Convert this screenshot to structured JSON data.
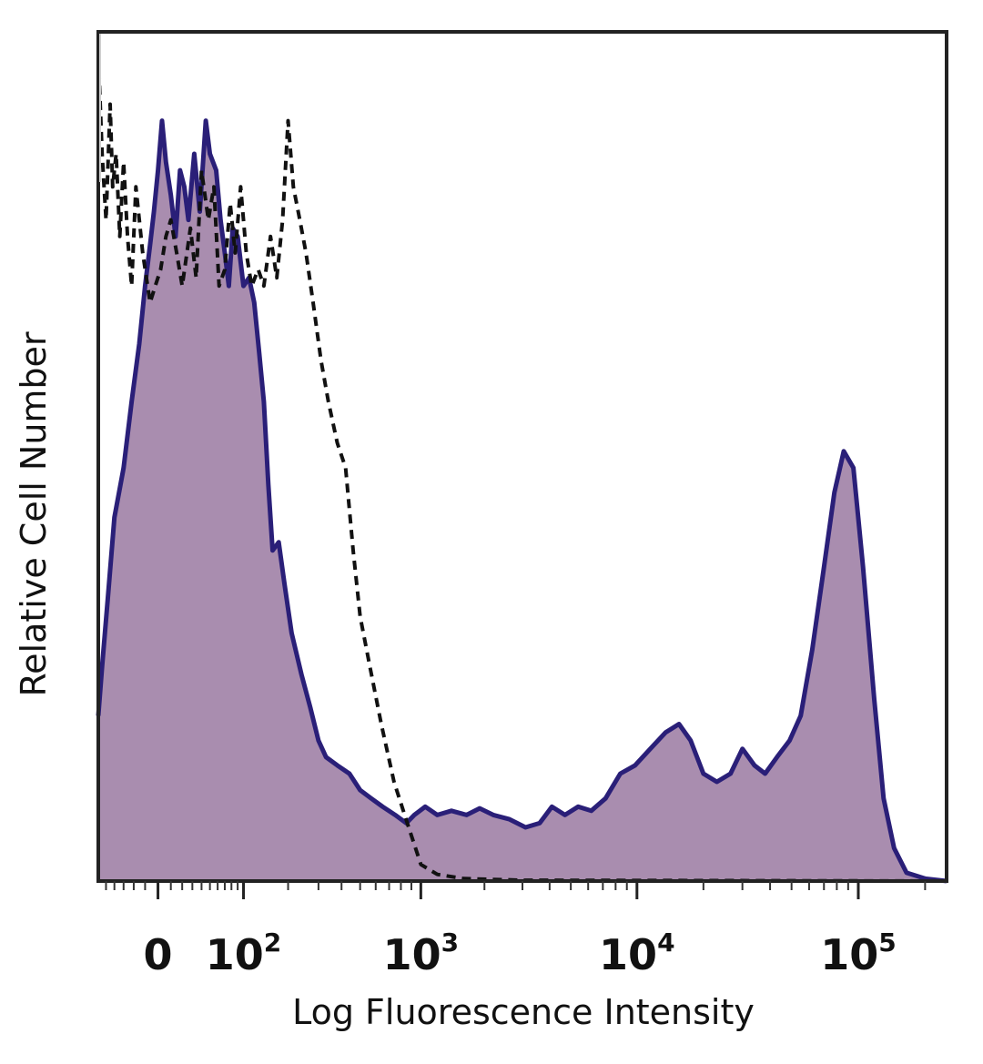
{
  "chart_data": {
    "type": "area",
    "title": "",
    "xlabel": "Log Fluorescence Intensity",
    "ylabel": "Relative Cell Number",
    "x_scale": "biexponential",
    "xlim": [
      -60,
      250000
    ],
    "ylim": [
      0,
      100
    ],
    "x_ticks": [
      {
        "value": 0,
        "base": "0",
        "exp": ""
      },
      {
        "value": 100,
        "base": "10",
        "exp": "2"
      },
      {
        "value": 1000,
        "base": "10",
        "exp": "3"
      },
      {
        "value": 10000,
        "base": "10",
        "exp": "4"
      },
      {
        "value": 100000,
        "base": "10",
        "exp": "5"
      }
    ],
    "grid": false,
    "legend": "none",
    "series": [
      {
        "style": "filled-solid",
        "fill_color": "#a98daf",
        "line_color": "#2a1f78",
        "points": [
          [
            -60,
            20
          ],
          [
            -55,
            26
          ],
          [
            -48,
            34
          ],
          [
            -40,
            44
          ],
          [
            -30,
            50
          ],
          [
            -22,
            58
          ],
          [
            -15,
            65
          ],
          [
            -10,
            72
          ],
          [
            -6,
            77
          ],
          [
            -3,
            81
          ],
          [
            0,
            86
          ],
          [
            3,
            92
          ],
          [
            6,
            87
          ],
          [
            10,
            83
          ],
          [
            14,
            78
          ],
          [
            18,
            86
          ],
          [
            22,
            84
          ],
          [
            26,
            80
          ],
          [
            32,
            88
          ],
          [
            38,
            81
          ],
          [
            45,
            92
          ],
          [
            50,
            88
          ],
          [
            58,
            86
          ],
          [
            64,
            80
          ],
          [
            70,
            76
          ],
          [
            76,
            72
          ],
          [
            82,
            79
          ],
          [
            90,
            78
          ],
          [
            100,
            72
          ],
          [
            110,
            73
          ],
          [
            120,
            70
          ],
          [
            130,
            64
          ],
          [
            140,
            58
          ],
          [
            150,
            48
          ],
          [
            160,
            40
          ],
          [
            175,
            41
          ],
          [
            190,
            36
          ],
          [
            210,
            30
          ],
          [
            240,
            25
          ],
          [
            270,
            21
          ],
          [
            300,
            17
          ],
          [
            330,
            15
          ],
          [
            380,
            14
          ],
          [
            440,
            13
          ],
          [
            500,
            11
          ],
          [
            570,
            10
          ],
          [
            650,
            9
          ],
          [
            750,
            8
          ],
          [
            850,
            7
          ],
          [
            930,
            8
          ],
          [
            1050,
            9
          ],
          [
            1200,
            8
          ],
          [
            1400,
            8.5
          ],
          [
            1650,
            8
          ],
          [
            1900,
            8.8
          ],
          [
            2200,
            8
          ],
          [
            2600,
            7.5
          ],
          [
            3100,
            6.5
          ],
          [
            3600,
            7
          ],
          [
            4100,
            9
          ],
          [
            4700,
            8
          ],
          [
            5400,
            9
          ],
          [
            6200,
            8.5
          ],
          [
            7200,
            10
          ],
          [
            8400,
            13
          ],
          [
            9800,
            14
          ],
          [
            11500,
            16
          ],
          [
            13500,
            18
          ],
          [
            15500,
            19
          ],
          [
            17500,
            17
          ],
          [
            20000,
            13
          ],
          [
            23000,
            12
          ],
          [
            26500,
            13
          ],
          [
            30000,
            16
          ],
          [
            34000,
            14
          ],
          [
            38000,
            13
          ],
          [
            43000,
            15
          ],
          [
            49000,
            17
          ],
          [
            55000,
            20
          ],
          [
            62000,
            28
          ],
          [
            70000,
            38
          ],
          [
            78000,
            47
          ],
          [
            86000,
            52
          ],
          [
            95000,
            50
          ],
          [
            105000,
            38
          ],
          [
            118000,
            22
          ],
          [
            130000,
            10
          ],
          [
            145000,
            4
          ],
          [
            165000,
            1
          ],
          [
            200000,
            0.3
          ],
          [
            250000,
            0
          ]
        ]
      },
      {
        "style": "dashed-line",
        "line_color": "#111111",
        "points": [
          [
            -60,
            100
          ],
          [
            -55,
            88
          ],
          [
            -50,
            80
          ],
          [
            -45,
            94
          ],
          [
            -42,
            84
          ],
          [
            -38,
            88
          ],
          [
            -34,
            78
          ],
          [
            -30,
            87
          ],
          [
            -26,
            78
          ],
          [
            -22,
            72
          ],
          [
            -18,
            84
          ],
          [
            -12,
            76
          ],
          [
            -6,
            70
          ],
          [
            -2,
            72
          ],
          [
            2,
            74
          ],
          [
            6,
            78
          ],
          [
            10,
            80
          ],
          [
            15,
            76
          ],
          [
            20,
            72
          ],
          [
            28,
            79
          ],
          [
            34,
            73
          ],
          [
            40,
            86
          ],
          [
            48,
            80
          ],
          [
            55,
            84
          ],
          [
            62,
            72
          ],
          [
            70,
            74
          ],
          [
            78,
            82
          ],
          [
            86,
            76
          ],
          [
            95,
            84
          ],
          [
            105,
            76
          ],
          [
            115,
            72
          ],
          [
            128,
            74
          ],
          [
            140,
            72
          ],
          [
            155,
            78
          ],
          [
            170,
            73
          ],
          [
            185,
            80
          ],
          [
            200,
            92
          ],
          [
            215,
            84
          ],
          [
            235,
            80
          ],
          [
            255,
            76
          ],
          [
            280,
            70
          ],
          [
            310,
            63
          ],
          [
            340,
            58
          ],
          [
            380,
            53
          ],
          [
            420,
            50
          ],
          [
            460,
            40
          ],
          [
            500,
            32
          ],
          [
            560,
            26
          ],
          [
            640,
            19
          ],
          [
            740,
            12
          ],
          [
            860,
            7
          ],
          [
            1000,
            2
          ],
          [
            1200,
            0.8
          ],
          [
            1600,
            0.3
          ],
          [
            3000,
            0.1
          ],
          [
            250000,
            0
          ]
        ]
      }
    ]
  }
}
